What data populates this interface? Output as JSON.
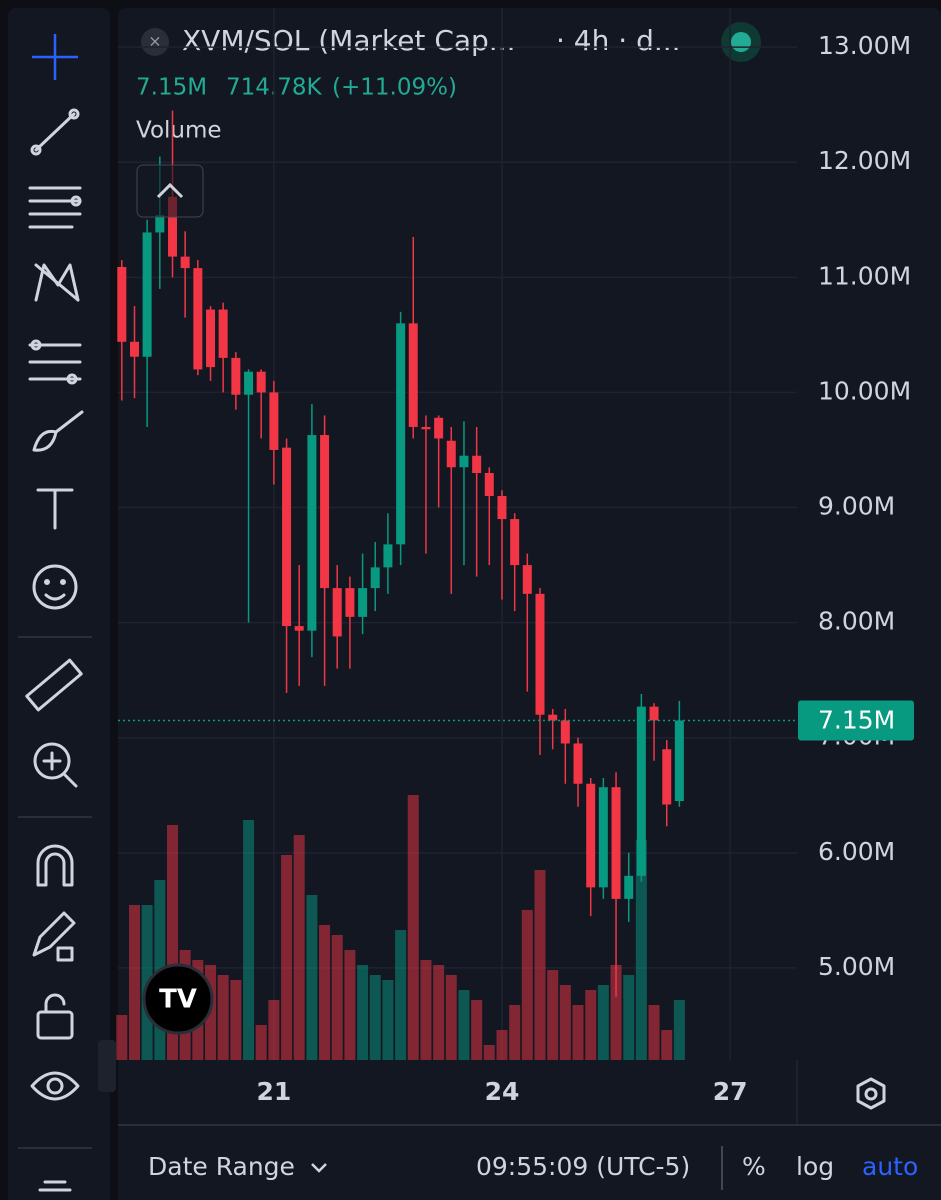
{
  "header": {
    "symbol": "XVM/SOL (Market Cap...",
    "interval": "· 4h · d...",
    "last": "7.15M",
    "change": "714.78K",
    "change_pct": "(+11.09%)",
    "volume_label": "Volume"
  },
  "chart_data": {
    "type": "candlestick",
    "x": [
      19,
      19.167,
      19.333,
      19.5,
      19.667,
      19.833,
      20,
      20.167,
      20.333,
      20.5,
      20.667,
      20.833,
      21,
      21.167,
      21.333,
      21.5,
      21.667,
      21.833,
      22,
      22.167,
      22.333,
      22.5,
      22.667,
      22.833,
      23,
      23.167,
      23.333,
      23.5,
      23.667,
      23.833,
      24,
      24.167,
      24.333,
      24.5,
      24.667,
      24.833,
      25,
      25.167,
      25.333,
      25.5,
      25.667,
      25.833,
      26,
      26.167,
      26.333
    ],
    "open": [
      11090000,
      10440000,
      10310000,
      11390000,
      11700000,
      11180000,
      11080000,
      10720000,
      10720000,
      10300000,
      9980000,
      10180000,
      10000000,
      9520000,
      7970000,
      7930000,
      9630000,
      8300000,
      8300000,
      8050000,
      8300000,
      8480000,
      8680000,
      10600000,
      9700000,
      9780000,
      9580000,
      9350000,
      9450000,
      9300000,
      9100000,
      8900000,
      8500000,
      8250000,
      7200000,
      7150000,
      6950000,
      6600000,
      5700000,
      6570000,
      5600000,
      5800000,
      7270000,
      6900000,
      6450000
    ],
    "high": [
      11150000,
      10750000,
      11500000,
      12050000,
      12450000,
      11400000,
      11150000,
      10750000,
      10780000,
      10350000,
      10200000,
      10200000,
      10100000,
      9600000,
      8500000,
      9900000,
      9800000,
      8500000,
      8400000,
      8600000,
      8700000,
      8950000,
      10700000,
      11350000,
      9800000,
      9800000,
      9700000,
      9750000,
      9700000,
      9350000,
      9150000,
      8950000,
      8600000,
      8300000,
      7250000,
      7250000,
      7000000,
      6650000,
      6650000,
      6700000,
      6000000,
      7380000,
      7300000,
      6980000,
      7320000
    ],
    "low": [
      9930000,
      9950000,
      9700000,
      10900000,
      11000000,
      10650000,
      10150000,
      10100000,
      10000000,
      9850000,
      8000000,
      9600000,
      9200000,
      7390000,
      7450000,
      7700000,
      7450000,
      7600000,
      7600000,
      7900000,
      8100000,
      8250000,
      8500000,
      9600000,
      8600000,
      9000000,
      8250000,
      8500000,
      8400000,
      8500000,
      8200000,
      8100000,
      7400000,
      6850000,
      6900000,
      6600000,
      6400000,
      5450000,
      5600000,
      4750000,
      5400000,
      5750000,
      6800000,
      6230000,
      6400000
    ],
    "close": [
      10440000,
      10310000,
      11390000,
      11540000,
      11180000,
      11080000,
      10200000,
      10220000,
      10300000,
      9980000,
      10180000,
      10000000,
      9500000,
      7970000,
      7930000,
      9630000,
      8300000,
      7880000,
      8050000,
      8300000,
      8480000,
      8680000,
      10600000,
      9700000,
      9680000,
      9600000,
      9350000,
      9450000,
      9300000,
      9100000,
      8900000,
      8500000,
      8250000,
      7200000,
      7150000,
      6950000,
      6600000,
      5700000,
      6570000,
      5600000,
      5800000,
      7270000,
      7150000,
      6420000,
      7150000
    ],
    "volume": [
      45,
      155,
      155,
      180,
      235,
      110,
      100,
      95,
      85,
      80,
      240,
      35,
      60,
      205,
      225,
      165,
      135,
      125,
      110,
      95,
      85,
      80,
      130,
      265,
      100,
      95,
      85,
      70,
      60,
      15,
      30,
      55,
      150,
      190,
      90,
      75,
      55,
      70,
      75,
      95,
      85,
      220,
      55,
      30,
      60
    ],
    "volume_ylim": [
      0,
      300
    ],
    "up_color": "#089981",
    "down_color": "#f23645",
    "xlim": [
      18.95,
      27.88
    ],
    "xticks": [
      21,
      24,
      27
    ],
    "ylim": [
      4200000,
      13340000
    ],
    "yticks": [
      {
        "value": 13000000,
        "label": "13.00M"
      },
      {
        "value": 12000000,
        "label": "12.00M"
      },
      {
        "value": 11000000,
        "label": "11.00M"
      },
      {
        "value": 10000000,
        "label": "10.00M"
      },
      {
        "value": 9000000,
        "label": "9.00M"
      },
      {
        "value": 8000000,
        "label": "8.00M"
      },
      {
        "value": 7000000,
        "label": "7.00M"
      },
      {
        "value": 6000000,
        "label": "6.00M"
      },
      {
        "value": 5000000,
        "label": "5.00M"
      }
    ],
    "last_price": {
      "value": 7150000,
      "label": "7.15M"
    },
    "grid": true
  },
  "footer": {
    "date_range": "Date Range",
    "time": "09:55:09 (UTC-5)",
    "percent": "%",
    "log": "log",
    "auto": "auto"
  }
}
